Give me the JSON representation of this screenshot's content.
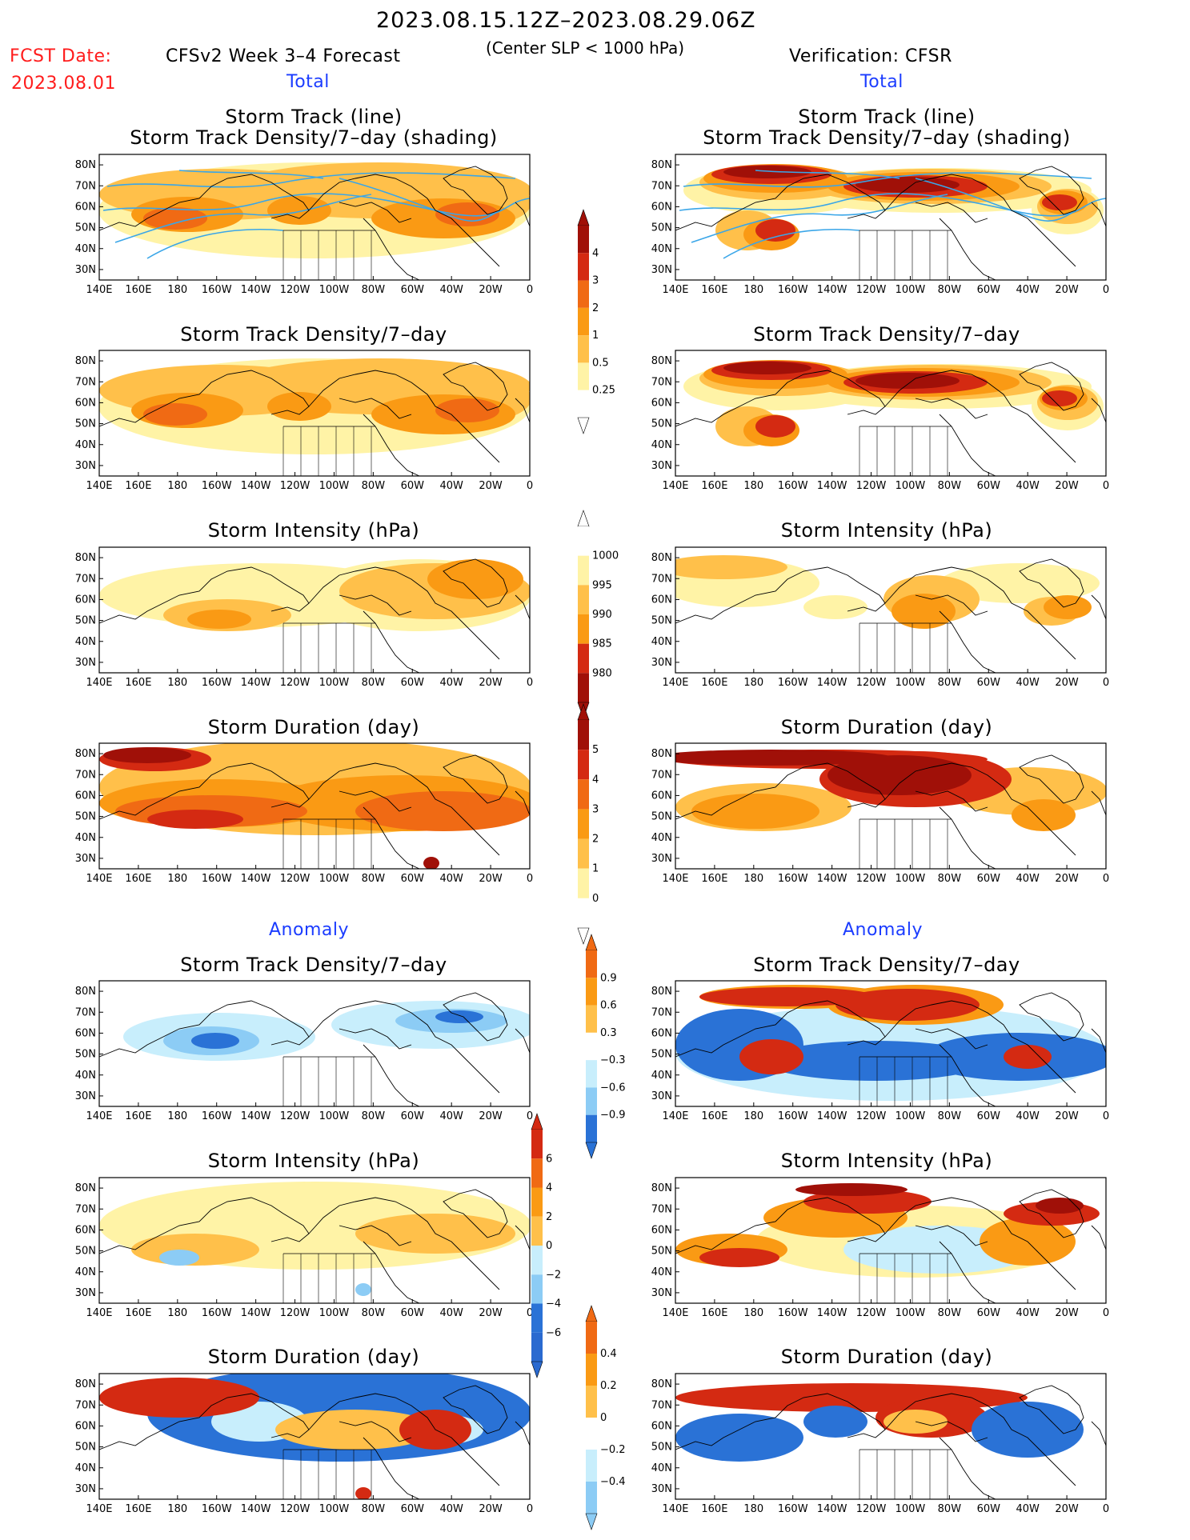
{
  "header": {
    "date_range": "2023.08.15.12Z–2023.08.29.06Z",
    "fcst_label": "FCST Date:",
    "fcst_date": "2023.08.01",
    "left_title": "CFSv2 Week 3–4 Forecast",
    "criterion": "(Center SLP < 1000 hPa)",
    "right_title": "Verification: CFSR"
  },
  "sections": {
    "total": "Total",
    "anomaly": "Anomaly"
  },
  "axes": {
    "x_ticks": [
      "140E",
      "160E",
      "180",
      "160W",
      "140W",
      "120W",
      "100W",
      "80W",
      "60W",
      "40W",
      "20W",
      "0"
    ],
    "y_ticks": [
      "80N",
      "70N",
      "60N",
      "50N",
      "40N",
      "30N"
    ]
  },
  "colors": {
    "fill_light": "#fff3a6",
    "fill_mid": "#ffc04a",
    "fill_orange": "#fa9a14",
    "fill_darkorange": "#f06a14",
    "fill_red": "#d42a12",
    "fill_darkred": "#a01008",
    "track_line": "#3aa6e8",
    "neg_light": "#c8eefc",
    "neg_mid": "#8cccf5",
    "neg_dark": "#2a72d6"
  },
  "colorbars": [
    {
      "id": "density",
      "labels": [
        "4",
        "3",
        "2",
        "1",
        "0.5",
        "0.25"
      ]
    },
    {
      "id": "intensity",
      "labels": [
        "1000",
        "995",
        "990",
        "985",
        "980"
      ]
    },
    {
      "id": "duration",
      "labels": [
        "5",
        "4",
        "3",
        "2",
        "1",
        "0"
      ]
    },
    {
      "id": "density-anom",
      "labels": [
        "0.9",
        "0.6",
        "0.3",
        "−0.3",
        "−0.6",
        "−0.9"
      ]
    },
    {
      "id": "intensity-anom",
      "labels": [
        "6",
        "4",
        "2",
        "0",
        "−2",
        "−4",
        "−6"
      ]
    },
    {
      "id": "duration-anom",
      "labels": [
        "0.4",
        "0.2",
        "0",
        "−0.2",
        "−0.4"
      ]
    }
  ],
  "chart_data": [
    {
      "type": "heatmap",
      "panel": "forecast-total-track",
      "title": "Storm Track (line)",
      "subtitle": "Storm Track Density/7–day (shading)"
    },
    {
      "type": "heatmap",
      "panel": "cfsr-total-track",
      "title": "Storm Track (line)",
      "subtitle": "Storm Track Density/7–day (shading)"
    },
    {
      "type": "heatmap",
      "panel": "forecast-total-density",
      "title": "Storm Track Density/7–day"
    },
    {
      "type": "heatmap",
      "panel": "cfsr-total-density",
      "title": "Storm Track Density/7–day"
    },
    {
      "type": "heatmap",
      "panel": "forecast-total-intensity",
      "title": "Storm Intensity (hPa)"
    },
    {
      "type": "heatmap",
      "panel": "cfsr-total-intensity",
      "title": "Storm Intensity (hPa)"
    },
    {
      "type": "heatmap",
      "panel": "forecast-total-duration",
      "title": "Storm Duration (day)"
    },
    {
      "type": "heatmap",
      "panel": "cfsr-total-duration",
      "title": "Storm Duration (day)"
    },
    {
      "type": "heatmap",
      "panel": "forecast-anom-density",
      "title": "Storm Track Density/7–day"
    },
    {
      "type": "heatmap",
      "panel": "cfsr-anom-density",
      "title": "Storm Track Density/7–day"
    },
    {
      "type": "heatmap",
      "panel": "forecast-anom-intensity",
      "title": "Storm Intensity (hPa)"
    },
    {
      "type": "heatmap",
      "panel": "cfsr-anom-intensity",
      "title": "Storm Intensity (hPa)"
    },
    {
      "type": "heatmap",
      "panel": "forecast-anom-duration",
      "title": "Storm Duration (day)"
    },
    {
      "type": "heatmap",
      "panel": "cfsr-anom-duration",
      "title": "Storm Duration (day)"
    }
  ]
}
